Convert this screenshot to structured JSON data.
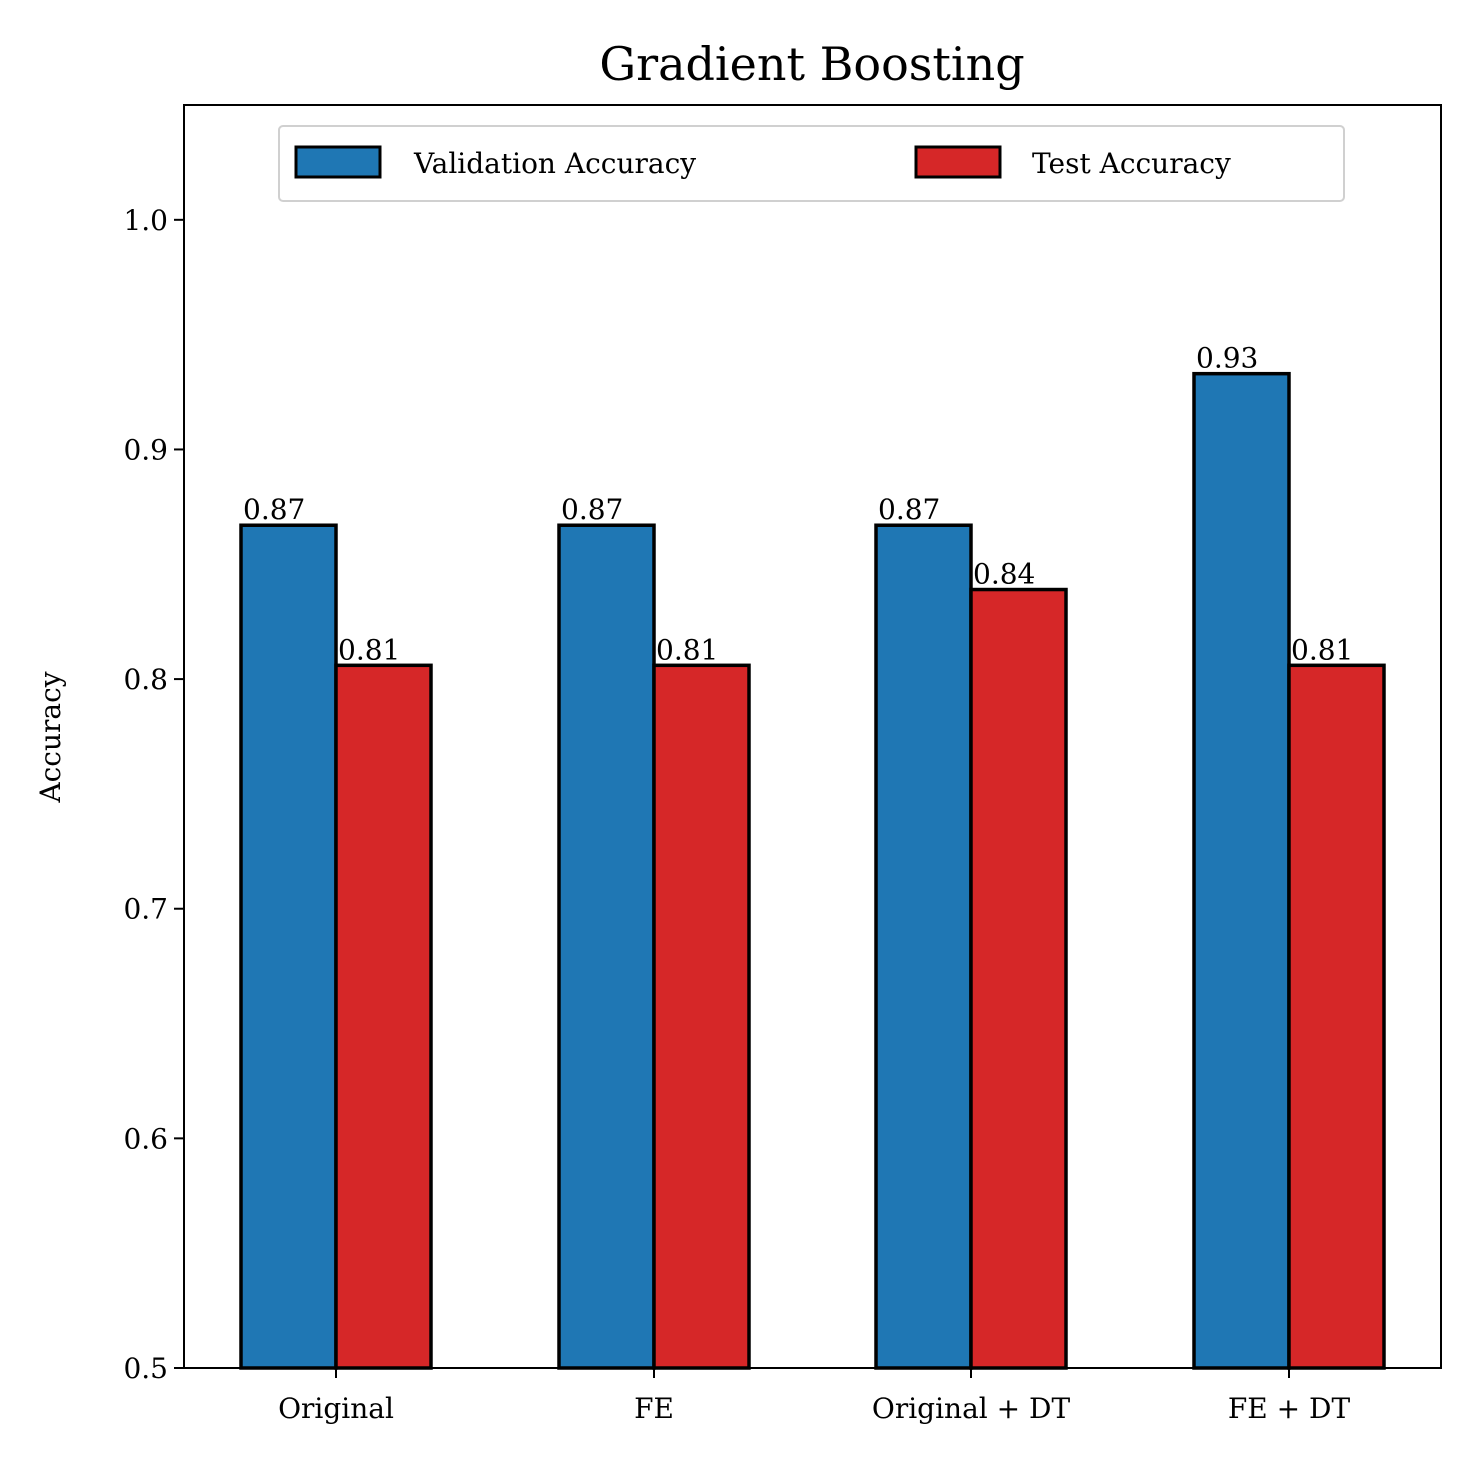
{
  "chart_data": {
    "type": "bar",
    "title": "Gradient Boosting",
    "xlabel": "",
    "ylabel": "Accuracy",
    "ylim": [
      0.5,
      1.05
    ],
    "yticks": [
      "0.5",
      "0.6",
      "0.7",
      "0.8",
      "0.9",
      "1.0"
    ],
    "categories": [
      "Original",
      "FE",
      "Original + DT",
      "FE + DT"
    ],
    "series": [
      {
        "name": "Validation Accuracy",
        "color": "#1f77b4",
        "values": [
          0.867,
          0.867,
          0.867,
          0.933
        ],
        "labels": [
          "0.87",
          "0.87",
          "0.87",
          "0.93"
        ]
      },
      {
        "name": "Test Accuracy",
        "color": "#d62728",
        "values": [
          0.806,
          0.806,
          0.839,
          0.806
        ],
        "labels": [
          "0.81",
          "0.81",
          "0.84",
          "0.81"
        ]
      }
    ],
    "grid": false,
    "legend_position": "top-center"
  }
}
